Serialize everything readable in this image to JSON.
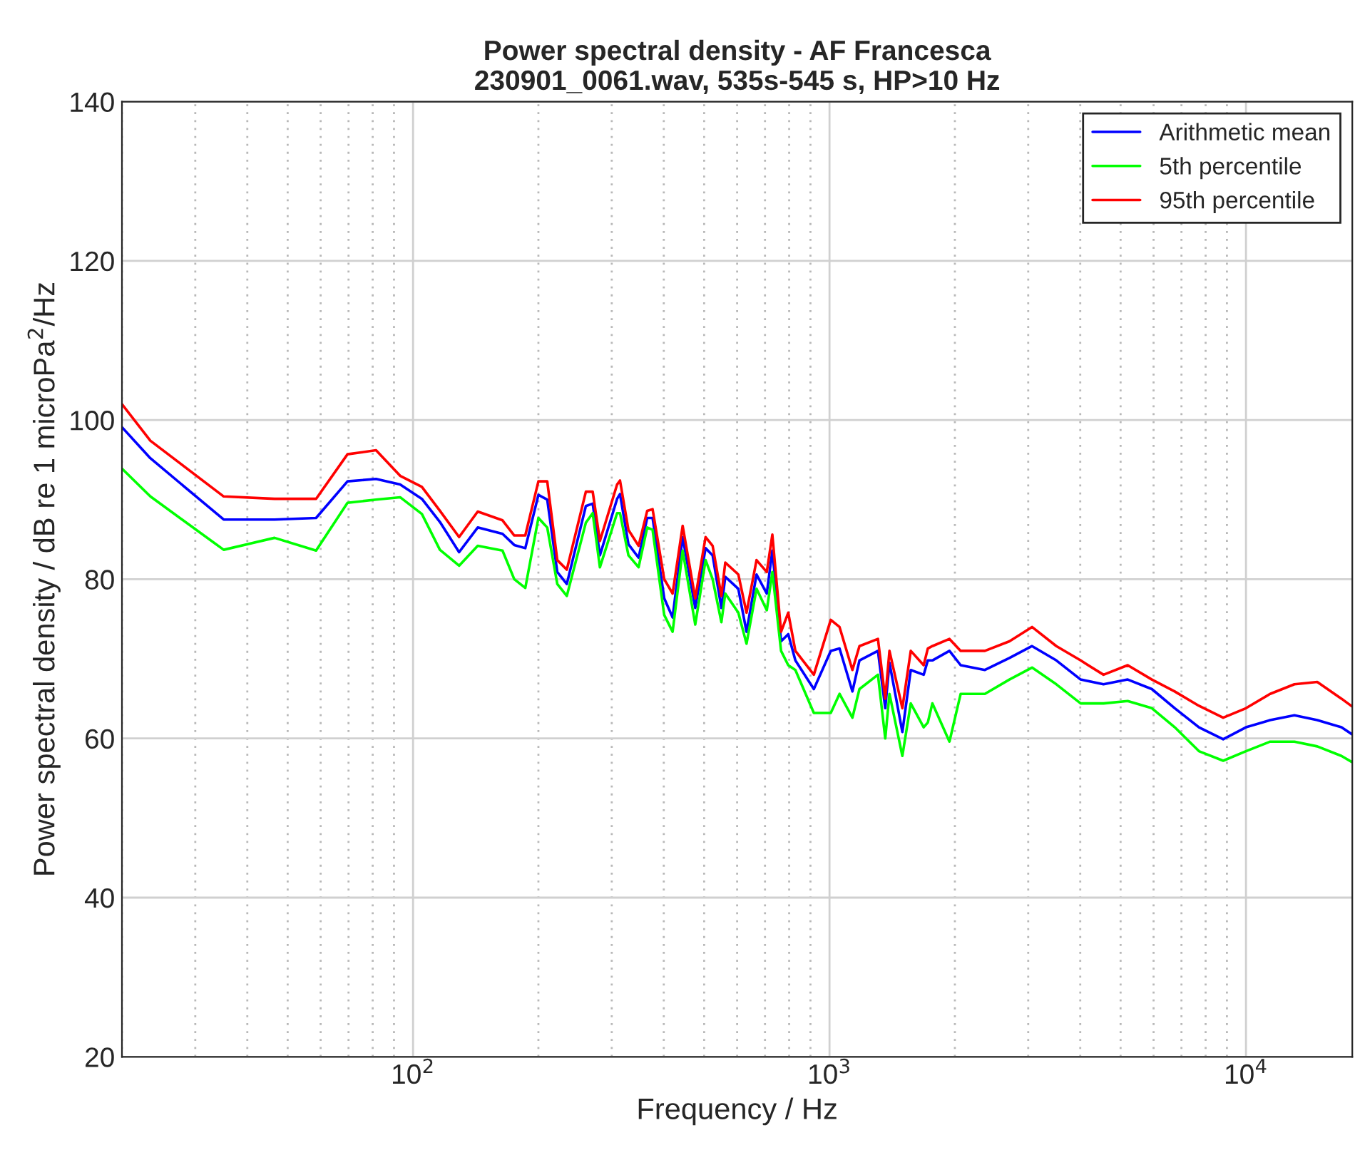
{
  "chart_data": {
    "type": "line",
    "title": "Power spectral density - AF Francesca\n230901_0061.wav, 535s-545 s, HP>10 Hz",
    "xlabel": "Frequency / Hz",
    "ylabel": "Power spectral density / dB re 1 microPa$^{2}$/Hz",
    "log": "x",
    "grid": true,
    "legend": "top right",
    "xlim": [
      20,
      18000
    ],
    "xticks": [
      {
        "value": 100,
        "label": "10$^{2}$"
      },
      {
        "value": 1000,
        "label": "10$^{3}$"
      },
      {
        "value": 10000,
        "label": "10$^{4}$"
      }
    ],
    "ylim": [
      20,
      140
    ],
    "yticks": [
      20,
      40,
      60,
      80,
      100,
      120,
      140
    ],
    "x": [
      20,
      23.4,
      35.1,
      46.5,
      58.5,
      69.6,
      81.5,
      93.1,
      105,
      116,
      129,
      143,
      164,
      175,
      186,
      200,
      210,
      222,
      234,
      260,
      270,
      281,
      309,
      314,
      329,
      348,
      365,
      376,
      401,
      420,
      444,
      476,
      504,
      524,
      550,
      562,
      604,
      632,
      668,
      707,
      729,
      765,
      796,
      828,
      917,
      1007,
      1057,
      1135,
      1180,
      1307,
      1361,
      1393,
      1496,
      1567,
      1683,
      1722,
      1766,
      1941,
      2065,
      2361,
      2704,
      3064,
      3505,
      4009,
      4549,
      5200,
      5943,
      6745,
      7709,
      8816,
      10000,
      11430,
      13070,
      14830,
      16950,
      18000
    ],
    "series": [
      {
        "name": "Arithmetic mean",
        "color": "#0000ff",
        "values": [
          99.1,
          95.2,
          87.5,
          87.5,
          87.7,
          92.3,
          92.6,
          91.9,
          90.1,
          87.2,
          83.4,
          86.5,
          85.7,
          84.3,
          83.9,
          90.6,
          90.0,
          80.9,
          79.4,
          89.2,
          89.5,
          83.0,
          90.1,
          90.7,
          84.4,
          82.7,
          87.7,
          87.7,
          77.6,
          75.2,
          85.3,
          76.4,
          83.9,
          83.0,
          76.4,
          80.3,
          78.8,
          73.4,
          80.6,
          78.2,
          83.6,
          72.2,
          73.1,
          69.8,
          66.2,
          71.0,
          71.3,
          65.9,
          69.8,
          71.0,
          63.8,
          69.5,
          60.8,
          68.6,
          68.0,
          69.8,
          69.8,
          71.0,
          69.2,
          68.6,
          70.1,
          71.6,
          69.8,
          67.4,
          66.8,
          67.4,
          66.2,
          63.8,
          61.4,
          59.9,
          61.4,
          62.3,
          62.9,
          62.3,
          61.4,
          60.5
        ]
      },
      {
        "name": "5th percentile",
        "color": "#00ff00",
        "values": [
          93.9,
          90.4,
          83.7,
          85.2,
          83.6,
          89.6,
          90.0,
          90.3,
          88.2,
          83.7,
          81.7,
          84.2,
          83.6,
          80.0,
          78.9,
          87.7,
          86.5,
          79.4,
          77.9,
          87.1,
          88.3,
          81.5,
          88.3,
          88.3,
          83.0,
          81.5,
          86.5,
          86.2,
          75.5,
          73.4,
          83.6,
          74.3,
          82.4,
          80.0,
          74.6,
          78.2,
          75.8,
          71.9,
          78.8,
          76.1,
          80.9,
          71.0,
          69.2,
          68.6,
          63.2,
          63.2,
          65.6,
          62.6,
          66.2,
          68.0,
          60.0,
          65.6,
          57.8,
          64.4,
          61.4,
          62.0,
          64.4,
          59.6,
          65.6,
          65.6,
          67.4,
          68.9,
          66.8,
          64.4,
          64.4,
          64.7,
          63.8,
          61.4,
          58.4,
          57.2,
          58.4,
          59.6,
          59.6,
          59.0,
          57.8,
          57.0
        ]
      },
      {
        "name": "95th percentile",
        "color": "#ff0000",
        "values": [
          102.0,
          97.4,
          90.4,
          90.1,
          90.1,
          95.7,
          96.2,
          93.0,
          91.6,
          88.6,
          85.3,
          88.5,
          87.4,
          85.5,
          85.5,
          92.3,
          92.3,
          82.4,
          81.2,
          91.0,
          91.0,
          84.8,
          91.9,
          92.4,
          86.2,
          84.2,
          88.6,
          88.8,
          80.0,
          78.2,
          86.7,
          77.6,
          85.3,
          84.2,
          77.9,
          82.1,
          80.6,
          75.8,
          82.4,
          80.9,
          85.6,
          73.4,
          75.8,
          71.0,
          68.0,
          74.9,
          74.0,
          68.6,
          71.6,
          72.5,
          65.0,
          71.0,
          63.8,
          71.0,
          69.2,
          71.3,
          71.6,
          72.5,
          71.0,
          71.0,
          72.2,
          74.0,
          71.6,
          69.8,
          68.0,
          69.2,
          67.4,
          65.9,
          64.1,
          62.6,
          63.8,
          65.6,
          66.8,
          67.1,
          65.0,
          64.0
        ]
      }
    ]
  }
}
